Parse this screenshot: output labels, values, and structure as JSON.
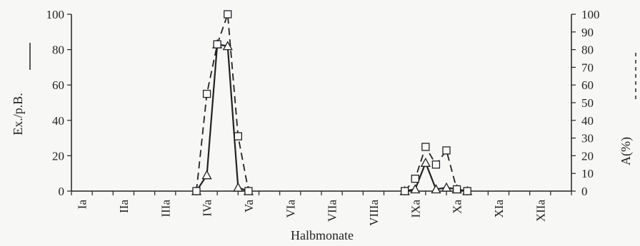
{
  "chart_data": {
    "type": "line",
    "xlabel": "Halbmonate",
    "ylabel_left": "Ex./p.B.",
    "ylabel_right": "A(%)",
    "x_tick_labels": [
      "Ia",
      "IIa",
      "IIIa",
      "IVa",
      "Va",
      "VIa",
      "VIIa",
      "VIIIa",
      "IXa",
      "Xa",
      "XIa",
      "XIIa"
    ],
    "left_axis": {
      "ylim": [
        0,
        100
      ],
      "ticks": [
        0,
        20,
        40,
        60,
        80,
        100
      ]
    },
    "right_axis": {
      "ylim": [
        0,
        100
      ],
      "ticks": [
        0,
        10,
        20,
        30,
        40,
        50,
        60,
        70,
        80,
        90,
        100
      ]
    },
    "series": [
      {
        "axis": "left",
        "line_style": "solid",
        "marker": "triangle",
        "color": "#222222",
        "segments": [
          {
            "x": [
              6,
              6.5,
              7,
              7.5,
              8,
              8.5
            ],
            "y": [
              0,
              9,
              83,
              82,
              2,
              0
            ]
          },
          {
            "x": [
              16,
              16.5,
              17,
              17.5,
              18,
              18.5,
              19
            ],
            "y": [
              0,
              1,
              16,
              1,
              2,
              1,
              0
            ]
          }
        ]
      },
      {
        "axis": "right",
        "line_style": "dashed",
        "marker": "square",
        "color": "#222222",
        "segments": [
          {
            "x": [
              6,
              6.5,
              7,
              7.5,
              8,
              8.5
            ],
            "y": [
              0,
              55,
              83,
              100,
              31,
              0
            ]
          },
          {
            "x": [
              16,
              16.5,
              17,
              17.5,
              18,
              18.5,
              19
            ],
            "y": [
              0,
              7,
              25,
              15,
              23,
              1,
              0
            ]
          }
        ]
      }
    ],
    "legend": "none",
    "grid": false
  }
}
